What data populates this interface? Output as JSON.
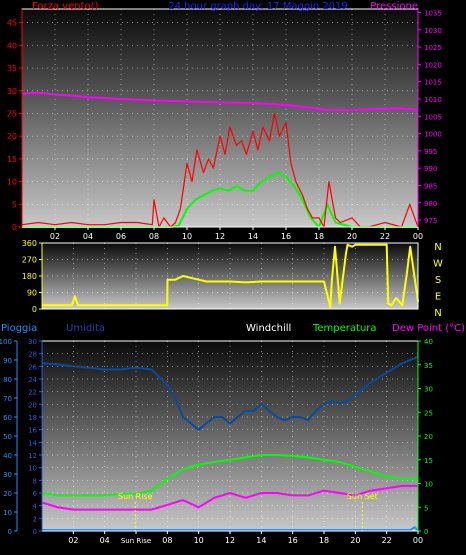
{
  "chart_data": [
    {
      "type": "line",
      "title": "24 hour graph day: 17 Maggio 2019",
      "left_axis": {
        "label": "Forza vento()",
        "ticks": [
          0,
          5,
          10,
          15,
          20,
          25,
          30,
          35,
          40,
          45
        ],
        "range": [
          0,
          48
        ]
      },
      "right_axis": {
        "label": "Pressione",
        "ticks": [
          975,
          980,
          985,
          990,
          995,
          1000,
          1005,
          1010,
          1015,
          1020,
          1025,
          1030,
          1035
        ],
        "range": [
          973,
          1036
        ]
      },
      "x_ticks": [
        "02",
        "04",
        "06",
        "08",
        "10",
        "12",
        "14",
        "16",
        "18",
        "20",
        "22",
        "00"
      ],
      "x_range": [
        0,
        24
      ],
      "grid": true,
      "series": [
        {
          "name": "Pressione",
          "axis": "right",
          "color": "#ff00ff",
          "x": [
            0,
            1,
            2,
            3,
            4,
            6,
            8,
            10,
            12,
            14,
            16,
            17,
            18,
            18.5,
            20,
            22,
            23,
            24
          ],
          "values": [
            1011.5,
            1011.8,
            1011.3,
            1011,
            1010.5,
            1010,
            1009.6,
            1009.3,
            1009,
            1008.8,
            1008.3,
            1007.7,
            1007.2,
            1006.8,
            1006.9,
            1007.2,
            1007.4,
            1006.8
          ]
        },
        {
          "name": "",
          "axis": "left",
          "color": "#00ff00",
          "x": [
            0,
            7.9,
            8,
            9,
            9.5,
            10,
            10.5,
            11,
            11.5,
            12,
            12.5,
            13,
            13.5,
            14,
            14.5,
            15,
            15.5,
            16,
            16.5,
            17,
            17.5,
            18,
            18.5,
            19,
            20,
            21,
            22,
            23,
            24
          ],
          "values": [
            0,
            0,
            0,
            0,
            0.3,
            4,
            6,
            7,
            8,
            8.5,
            8,
            9,
            8,
            8,
            10,
            11,
            12,
            11,
            9,
            6,
            2,
            0,
            5,
            1,
            0,
            0,
            0,
            0,
            0
          ]
        },
        {
          "name": "",
          "axis": "left",
          "color": "#ff0000",
          "x": [
            0,
            1,
            2,
            3,
            4,
            5,
            6,
            7,
            7.9,
            8,
            8.3,
            8.6,
            9,
            9.3,
            9.6,
            10,
            10.3,
            10.6,
            11,
            11.3,
            11.6,
            12,
            12.3,
            12.6,
            13,
            13.3,
            13.6,
            14,
            14.3,
            14.6,
            15,
            15.3,
            15.6,
            16,
            16.3,
            16.6,
            17,
            17.3,
            17.6,
            18,
            18.3,
            18.6,
            19,
            19.3,
            20,
            20.5,
            21,
            22,
            23,
            23.5,
            24
          ],
          "values": [
            0.5,
            1,
            0.5,
            1,
            0.5,
            0.5,
            1,
            1,
            0.5,
            6,
            0,
            2,
            0,
            1,
            4,
            14,
            10,
            17,
            12,
            15,
            13,
            20,
            16,
            22,
            18,
            19,
            16,
            21,
            17,
            22,
            19,
            25,
            20,
            23,
            14,
            10,
            7,
            4,
            2,
            2,
            0,
            10,
            2,
            1,
            2,
            0,
            0,
            1,
            0,
            5,
            0
          ]
        }
      ]
    },
    {
      "type": "line",
      "left_axis": {
        "ticks": [
          0,
          90,
          180,
          270,
          360
        ],
        "range": [
          0,
          360
        ]
      },
      "right_axis": {
        "ticks": [
          "N",
          "W",
          "S",
          "E",
          "N"
        ]
      },
      "x_range": [
        0,
        24
      ],
      "grid": true,
      "series": [
        {
          "name": "",
          "color": "#ffff00",
          "x": [
            0,
            1,
            1.9,
            2.1,
            2.3,
            2.6,
            3,
            4,
            5,
            6,
            7,
            7.5,
            7.99,
            8.01,
            8.5,
            9,
            10,
            10.5,
            11,
            12,
            13,
            14,
            15,
            16,
            17,
            18,
            18.4,
            18.5,
            18.7,
            19,
            19.4,
            19.5,
            19.8,
            20,
            21,
            22,
            22.1,
            22.3,
            22.6,
            23,
            23.3,
            23.5,
            24
          ],
          "values": [
            20,
            20,
            20,
            70,
            20,
            20,
            20,
            20,
            20,
            20,
            20,
            20,
            20,
            160,
            160,
            180,
            160,
            150,
            150,
            150,
            145,
            150,
            150,
            150,
            150,
            150,
            10,
            150,
            340,
            30,
            300,
            350,
            340,
            350,
            350,
            350,
            30,
            20,
            60,
            20,
            200,
            340,
            40
          ]
        }
      ]
    },
    {
      "type": "line",
      "x_ticks": [
        "02",
        "04",
        "Sun Rise",
        "08",
        "10",
        "12",
        "14",
        "16",
        "18",
        "20",
        "22",
        "00"
      ],
      "x_range": [
        0,
        24
      ],
      "grid": true,
      "axes": [
        {
          "label": "Pioggia",
          "ticks": [
            0,
            10,
            20,
            30,
            40,
            50,
            60,
            70,
            80,
            90,
            100
          ],
          "range": [
            0,
            100
          ]
        },
        {
          "label": "Umidita",
          "ticks": [
            0,
            2,
            4,
            6,
            8,
            10,
            12,
            14,
            16,
            18,
            20,
            22,
            24,
            26,
            28,
            30
          ],
          "range": [
            0,
            30
          ]
        },
        {
          "label": "Windchill"
        },
        {
          "label": "Temperatura",
          "ticks": [
            0,
            5,
            10,
            15,
            20,
            25,
            30,
            35,
            40
          ],
          "range": [
            0,
            40
          ]
        },
        {
          "label": "Dew Point (°C)"
        }
      ],
      "annotations": [
        {
          "text": "Sun Rise",
          "x": 5.95
        },
        {
          "text": "Sun Set",
          "x": 20.45
        }
      ],
      "series": [
        {
          "name": "Umidita",
          "axis": "Umidita",
          "color": "#0b4a9a",
          "x": [
            0,
            1,
            2,
            3,
            4,
            5,
            6,
            7,
            8,
            8.5,
            9,
            9.5,
            10,
            10.5,
            11,
            11.5,
            12,
            12.5,
            13,
            13.5,
            14,
            14.5,
            15,
            15.5,
            16,
            16.5,
            17,
            17.5,
            18,
            18.5,
            19,
            19.5,
            20,
            21,
            22,
            23,
            23.5,
            24
          ],
          "values": [
            26.5,
            26.3,
            26,
            25.8,
            25.5,
            25.5,
            25.8,
            25.5,
            23,
            21,
            18,
            17,
            16,
            17,
            18,
            18,
            17,
            18,
            19,
            19,
            20,
            19,
            18,
            17.5,
            18,
            18,
            17.5,
            19,
            20,
            20.5,
            20.2,
            20.5,
            21.5,
            23.5,
            25,
            26.5,
            27,
            27.5
          ]
        },
        {
          "name": "Temperatura",
          "axis": "Temperatura",
          "color": "#00ff00",
          "x": [
            0,
            1,
            2,
            3,
            4,
            5,
            6,
            7,
            8,
            9,
            10,
            11,
            12,
            13,
            14,
            15,
            16,
            17,
            18,
            19,
            20,
            21,
            22,
            23,
            24
          ],
          "values": [
            8,
            7.5,
            7.5,
            7.5,
            7.5,
            7.8,
            7.8,
            8.5,
            11,
            13,
            14,
            14.5,
            15,
            15.5,
            16,
            16,
            15.8,
            15.5,
            15,
            14.5,
            13.5,
            12.5,
            11.5,
            11,
            11
          ]
        },
        {
          "name": "Dew Point (°C)",
          "axis": "Temperatura",
          "color": "#ff00ff",
          "x": [
            0,
            1,
            2,
            3,
            4,
            5,
            6,
            7,
            8,
            9,
            10,
            11,
            12,
            13,
            14,
            15,
            16,
            17,
            18,
            19,
            20,
            21,
            22,
            23,
            24
          ],
          "values": [
            6,
            5,
            4.5,
            4.5,
            4.5,
            4.5,
            4.5,
            4.5,
            5.5,
            6.5,
            5,
            7,
            8,
            7,
            8,
            8,
            7.5,
            7.5,
            8.5,
            8,
            7.5,
            8.5,
            9,
            9.5,
            9.5
          ]
        },
        {
          "name": "Pioggia",
          "axis": "Pioggia",
          "color": "#1e90ff",
          "x": [
            0,
            23.5,
            23.8,
            24
          ],
          "values": [
            0.5,
            0.5,
            2,
            0
          ]
        }
      ]
    }
  ]
}
